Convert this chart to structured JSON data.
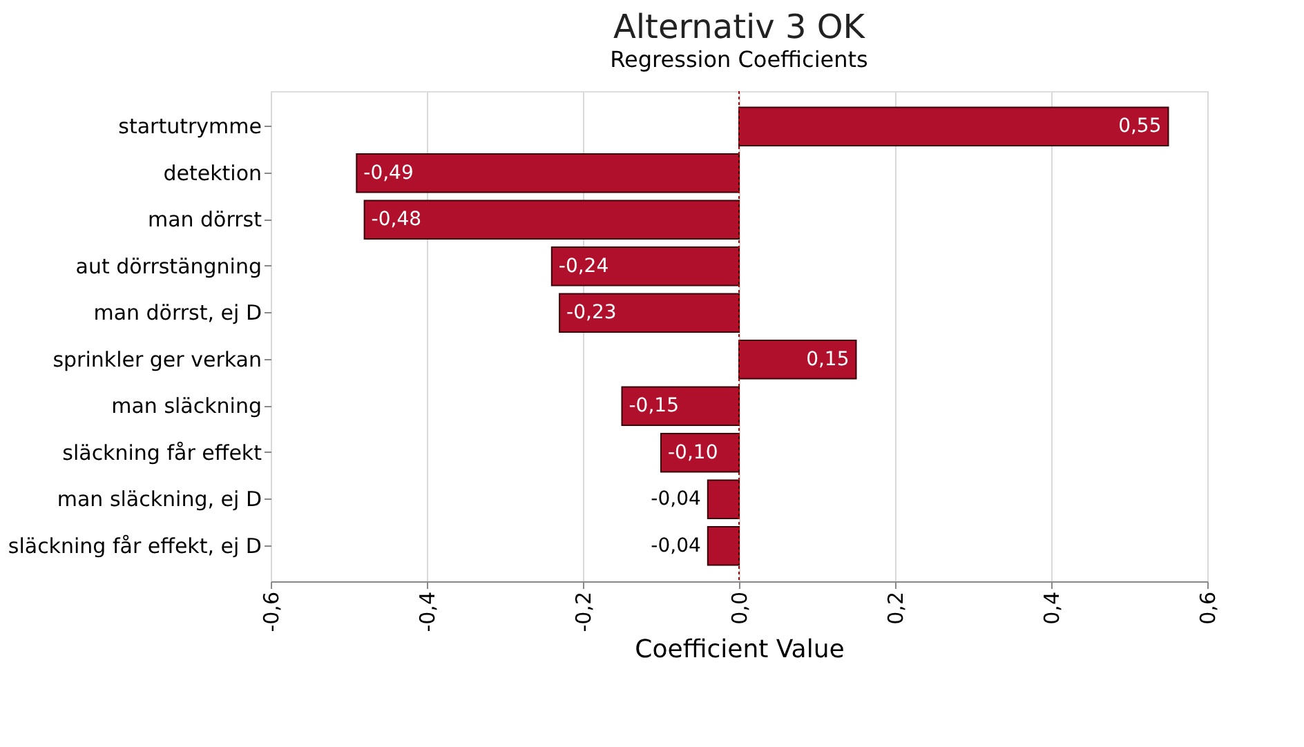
{
  "chart_data": {
    "type": "bar",
    "orientation": "horizontal",
    "title": "Alternativ 3 OK",
    "subtitle": "Regression Coefficients",
    "xlabel": "Coefficient Value",
    "categories": [
      "startutrymme",
      "detektion",
      "man dörrst",
      "aut dörrstängning",
      "man dörrst, ej D",
      "sprinkler ger verkan",
      "man släckning",
      "släckning får effekt",
      "man släckning, ej D",
      "släckning får effekt, ej D"
    ],
    "values": [
      0.55,
      -0.49,
      -0.48,
      -0.24,
      -0.23,
      0.15,
      -0.15,
      -0.1,
      -0.04,
      -0.04
    ],
    "value_labels": [
      "0,55",
      "-0,49",
      "-0,48",
      "-0,24",
      "-0,23",
      "0,15",
      "-0,15",
      "-0,10",
      "-0,04",
      "-0,04"
    ],
    "color": "#b0102c",
    "xlim": [
      -0.6,
      0.6
    ],
    "xticks": [
      {
        "value": -0.6,
        "label": "-0,6"
      },
      {
        "value": -0.4,
        "label": "-0,4"
      },
      {
        "value": -0.2,
        "label": "-0,2"
      },
      {
        "value": 0,
        "label": "0,0"
      },
      {
        "value": 0.2,
        "label": "0,2"
      },
      {
        "value": 0.4,
        "label": "0,4"
      },
      {
        "value": 0.6,
        "label": "0,6"
      }
    ],
    "ref_lines": [
      {
        "axis": "x",
        "value": 0,
        "color": "#c00000",
        "line_style": "dotted"
      }
    ],
    "grid": "x"
  }
}
